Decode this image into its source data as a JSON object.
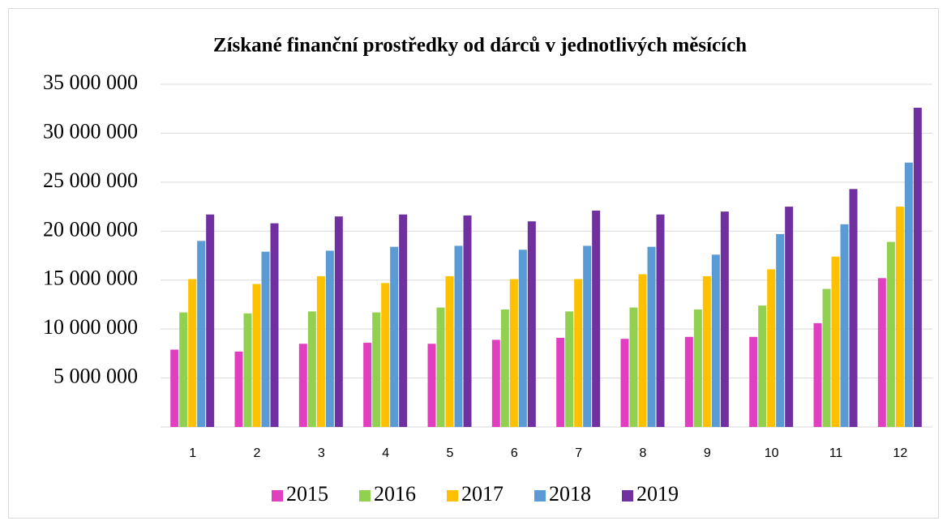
{
  "chart_data": {
    "type": "bar",
    "title": "Získané finanční prostředky od dárců v jednotlivých měsících",
    "categories": [
      "1",
      "2",
      "3",
      "4",
      "5",
      "6",
      "7",
      "8",
      "9",
      "10",
      "11",
      "12"
    ],
    "series": [
      {
        "name": "2015",
        "color": "#e040c0",
        "values": [
          7900000,
          7700000,
          8500000,
          8600000,
          8500000,
          8900000,
          9100000,
          9000000,
          9200000,
          9200000,
          10600000,
          15200000
        ]
      },
      {
        "name": "2016",
        "color": "#92d050",
        "values": [
          11700000,
          11600000,
          11800000,
          11700000,
          12200000,
          12000000,
          11800000,
          12200000,
          12000000,
          12400000,
          14100000,
          18900000
        ]
      },
      {
        "name": "2017",
        "color": "#ffc000",
        "values": [
          15100000,
          14600000,
          15400000,
          14700000,
          15400000,
          15100000,
          15100000,
          15600000,
          15400000,
          16100000,
          17400000,
          22500000
        ]
      },
      {
        "name": "2018",
        "color": "#5b9bd5",
        "values": [
          19000000,
          17900000,
          18000000,
          18400000,
          18500000,
          18100000,
          18500000,
          18400000,
          17600000,
          19700000,
          20700000,
          27000000
        ]
      },
      {
        "name": "2019",
        "color": "#7030a0",
        "values": [
          21700000,
          20800000,
          21500000,
          21700000,
          21600000,
          21000000,
          22100000,
          21700000,
          22000000,
          22500000,
          24300000,
          32600000
        ]
      }
    ],
    "ylim": [
      0,
      35000000
    ],
    "yticks": [
      {
        "value": 5000000,
        "label": "5 000 000"
      },
      {
        "value": 10000000,
        "label": "10 000 000"
      },
      {
        "value": 15000000,
        "label": "15 000 000"
      },
      {
        "value": 20000000,
        "label": "20 000 000"
      },
      {
        "value": 25000000,
        "label": "25 000 000"
      },
      {
        "value": 30000000,
        "label": "30 000 000"
      },
      {
        "value": 35000000,
        "label": "35 000 000"
      }
    ],
    "grid": true,
    "legend": "bottom"
  }
}
